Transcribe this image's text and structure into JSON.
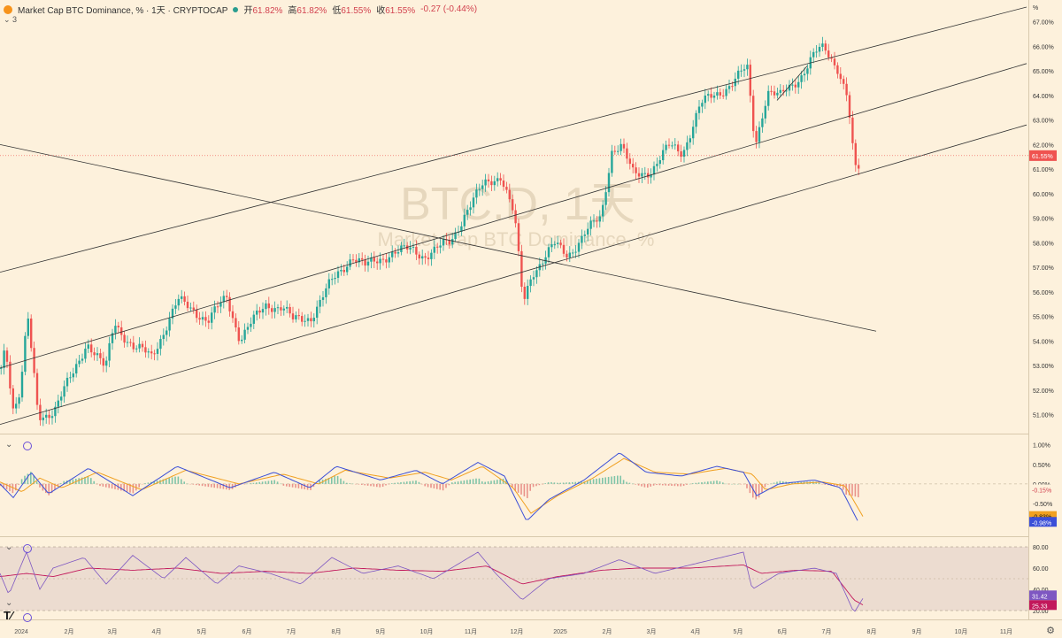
{
  "header": {
    "title": "Market Cap BTC Dominance, % · 1天 · CRYPTOCAP",
    "open_label": "开",
    "open_value": "61.82%",
    "high_label": "高",
    "high_value": "61.82%",
    "low_label": "低",
    "low_value": "61.55%",
    "close_label": "收",
    "close_value": "61.55%",
    "change": "-0.27 (-0.44%)",
    "collapse_count": "3"
  },
  "watermark": {
    "symbol": "BTC.D, 1天",
    "name": "Market Cap BTC Dominance, %"
  },
  "unit_label": "%",
  "colors": {
    "background": "#fdf1dc",
    "up": "#26a69a",
    "down": "#ef5350",
    "macd": "#3b4fd8",
    "signal": "#f0a020",
    "rsi": "#7e57c2",
    "rsi_ma": "#c2185b"
  },
  "chart_data": [
    {
      "type": "candlestick",
      "title": "Market Cap BTC Dominance, %",
      "x_ticks": [
        "2024",
        "2月",
        "3月",
        "4月",
        "5月",
        "6月",
        "7月",
        "8月",
        "9月",
        "10月",
        "11月",
        "12月",
        "2025",
        "2月",
        "3月",
        "4月",
        "5月",
        "6月",
        "7月",
        "8月",
        "9月",
        "10月",
        "11月"
      ],
      "y_ticks": [
        "51.00%",
        "52.00%",
        "53.00%",
        "54.00%",
        "55.00%",
        "56.00%",
        "57.00%",
        "58.00%",
        "59.00%",
        "60.00%",
        "61.00%",
        "62.00%",
        "63.00%",
        "64.00%",
        "65.00%",
        "66.00%",
        "67.00%"
      ],
      "ylim": [
        50.3,
        67.6
      ],
      "last_value": 61.55,
      "last_label": "61.55%",
      "anchors": [
        [
          0,
          52.9
        ],
        [
          5,
          53.9
        ],
        [
          14,
          51.2
        ],
        [
          22,
          52.0
        ],
        [
          30,
          55.0
        ],
        [
          42,
          50.9
        ],
        [
          60,
          51.2
        ],
        [
          82,
          52.7
        ],
        [
          97,
          54.0
        ],
        [
          118,
          52.8
        ],
        [
          128,
          54.8
        ],
        [
          150,
          53.7
        ],
        [
          170,
          53.4
        ],
        [
          200,
          55.6
        ],
        [
          218,
          55.3
        ],
        [
          234,
          54.8
        ],
        [
          255,
          55.8
        ],
        [
          270,
          54.1
        ],
        [
          300,
          55.5
        ],
        [
          318,
          55.4
        ],
        [
          330,
          54.8
        ],
        [
          350,
          55.0
        ],
        [
          372,
          56.3
        ],
        [
          397,
          57.5
        ],
        [
          412,
          57.0
        ],
        [
          440,
          57.6
        ],
        [
          465,
          57.7
        ],
        [
          478,
          57.5
        ],
        [
          508,
          58.0
        ],
        [
          525,
          59.3
        ],
        [
          545,
          60.3
        ],
        [
          565,
          60.8
        ],
        [
          580,
          59.1
        ],
        [
          590,
          55.5
        ],
        [
          600,
          56.8
        ],
        [
          625,
          57.9
        ],
        [
          640,
          57.5
        ],
        [
          660,
          58.4
        ],
        [
          678,
          59.0
        ],
        [
          690,
          61.8
        ],
        [
          700,
          62.0
        ],
        [
          715,
          60.7
        ],
        [
          735,
          61.0
        ],
        [
          755,
          61.9
        ],
        [
          770,
          61.7
        ],
        [
          790,
          63.6
        ],
        [
          810,
          64.1
        ],
        [
          825,
          64.5
        ],
        [
          843,
          65.1
        ],
        [
          852,
          62.0
        ],
        [
          866,
          64.2
        ],
        [
          880,
          63.9
        ],
        [
          903,
          64.8
        ],
        [
          920,
          65.7
        ],
        [
          930,
          65.9
        ],
        [
          945,
          65.2
        ],
        [
          957,
          63.9
        ],
        [
          961,
          62.1
        ],
        [
          967,
          60.6
        ],
        [
          972,
          61.55
        ]
      ],
      "trendlines": [
        {
          "name": "upper-channel",
          "from": [
            0,
            56.8
          ],
          "to": [
            1160,
            67.6
          ]
        },
        {
          "name": "mid-channel",
          "from": [
            0,
            52.9
          ],
          "to": [
            1160,
            65.3
          ]
        },
        {
          "name": "lower-channel",
          "from": [
            0,
            50.6
          ],
          "to": [
            1160,
            62.8
          ]
        },
        {
          "name": "descending-line",
          "from": [
            0,
            62.0
          ],
          "to": [
            990,
            54.4
          ]
        },
        {
          "name": "short-line",
          "from": [
            878,
            63.8
          ],
          "to": [
            912,
            65.2
          ]
        }
      ]
    },
    {
      "type": "line",
      "title": "MACD",
      "y_ticks": [
        "1.00%",
        "0.50%",
        "0.00%",
        "-0.50%",
        "-1.00%"
      ],
      "ylim": [
        -1.2,
        1.15
      ],
      "series": [
        {
          "values_at": [
            [
              0,
              0.0
            ],
            [
              15,
              -0.35
            ],
            [
              35,
              0.3
            ],
            [
              55,
              -0.25
            ],
            [
              100,
              0.4
            ],
            [
              150,
              -0.3
            ],
            [
              200,
              0.45
            ],
            [
              260,
              -0.1
            ],
            [
              310,
              0.3
            ],
            [
              350,
              -0.1
            ],
            [
              380,
              0.45
            ],
            [
              430,
              0.1
            ],
            [
              470,
              0.35
            ],
            [
              500,
              0.0
            ],
            [
              540,
              0.55
            ],
            [
              570,
              0.2
            ],
            [
              595,
              -0.95
            ],
            [
              620,
              -0.4
            ],
            [
              660,
              0.1
            ],
            [
              700,
              0.8
            ],
            [
              730,
              0.3
            ],
            [
              770,
              0.2
            ],
            [
              810,
              0.45
            ],
            [
              840,
              0.3
            ],
            [
              855,
              -0.3
            ],
            [
              880,
              0.0
            ],
            [
              920,
              0.1
            ],
            [
              950,
              -0.1
            ],
            [
              970,
              -0.98
            ]
          ]
        },
        {
          "values_at": [
            [
              0,
              0.05
            ],
            [
              25,
              -0.2
            ],
            [
              45,
              0.15
            ],
            [
              70,
              -0.1
            ],
            [
              110,
              0.3
            ],
            [
              160,
              -0.15
            ],
            [
              210,
              0.35
            ],
            [
              270,
              0.0
            ],
            [
              320,
              0.25
            ],
            [
              360,
              0.0
            ],
            [
              390,
              0.35
            ],
            [
              440,
              0.15
            ],
            [
              480,
              0.3
            ],
            [
              510,
              0.1
            ],
            [
              545,
              0.45
            ],
            [
              580,
              -0.1
            ],
            [
              600,
              -0.75
            ],
            [
              630,
              -0.3
            ],
            [
              670,
              0.15
            ],
            [
              705,
              0.65
            ],
            [
              740,
              0.3
            ],
            [
              780,
              0.25
            ],
            [
              820,
              0.4
            ],
            [
              850,
              0.25
            ],
            [
              865,
              -0.15
            ],
            [
              895,
              0.0
            ],
            [
              930,
              0.05
            ],
            [
              955,
              -0.05
            ],
            [
              975,
              -0.83
            ]
          ]
        }
      ],
      "labels": {
        "hist": "-0.15%",
        "signal": "-0.83%",
        "macd": "-0.98%"
      }
    },
    {
      "type": "line",
      "title": "RSI",
      "y_ticks": [
        "80.00",
        "60.00",
        "40.00",
        "20.00"
      ],
      "ylim": [
        15,
        85
      ],
      "bands": [
        70,
        30
      ],
      "series": [
        {
          "values_at": [
            [
              0,
              55
            ],
            [
              10,
              35
            ],
            [
              30,
              75
            ],
            [
              45,
              40
            ],
            [
              60,
              60
            ],
            [
              95,
              70
            ],
            [
              120,
              45
            ],
            [
              150,
              72
            ],
            [
              185,
              50
            ],
            [
              210,
              70
            ],
            [
              245,
              45
            ],
            [
              270,
              62
            ],
            [
              305,
              55
            ],
            [
              340,
              45
            ],
            [
              375,
              70
            ],
            [
              410,
              55
            ],
            [
              450,
              62
            ],
            [
              490,
              50
            ],
            [
              540,
              75
            ],
            [
              560,
              55
            ],
            [
              590,
              30
            ],
            [
              620,
              50
            ],
            [
              660,
              55
            ],
            [
              700,
              68
            ],
            [
              740,
              55
            ],
            [
              790,
              65
            ],
            [
              840,
              75
            ],
            [
              850,
              40
            ],
            [
              880,
              55
            ],
            [
              920,
              60
            ],
            [
              945,
              55
            ],
            [
              965,
              18
            ],
            [
              975,
              31.42
            ]
          ]
        },
        {
          "values_at": [
            [
              0,
              52
            ],
            [
              30,
              55
            ],
            [
              60,
              52
            ],
            [
              100,
              60
            ],
            [
              150,
              58
            ],
            [
              200,
              60
            ],
            [
              250,
              55
            ],
            [
              300,
              57
            ],
            [
              350,
              55
            ],
            [
              400,
              60
            ],
            [
              450,
              58
            ],
            [
              500,
              57
            ],
            [
              550,
              62
            ],
            [
              590,
              45
            ],
            [
              630,
              52
            ],
            [
              680,
              58
            ],
            [
              720,
              60
            ],
            [
              780,
              60
            ],
            [
              840,
              63
            ],
            [
              860,
              55
            ],
            [
              900,
              58
            ],
            [
              940,
              57
            ],
            [
              965,
              30
            ],
            [
              975,
              25.33
            ]
          ]
        }
      ],
      "labels": {
        "rsi": "31.42",
        "rsi_ma": "25.33"
      }
    }
  ]
}
